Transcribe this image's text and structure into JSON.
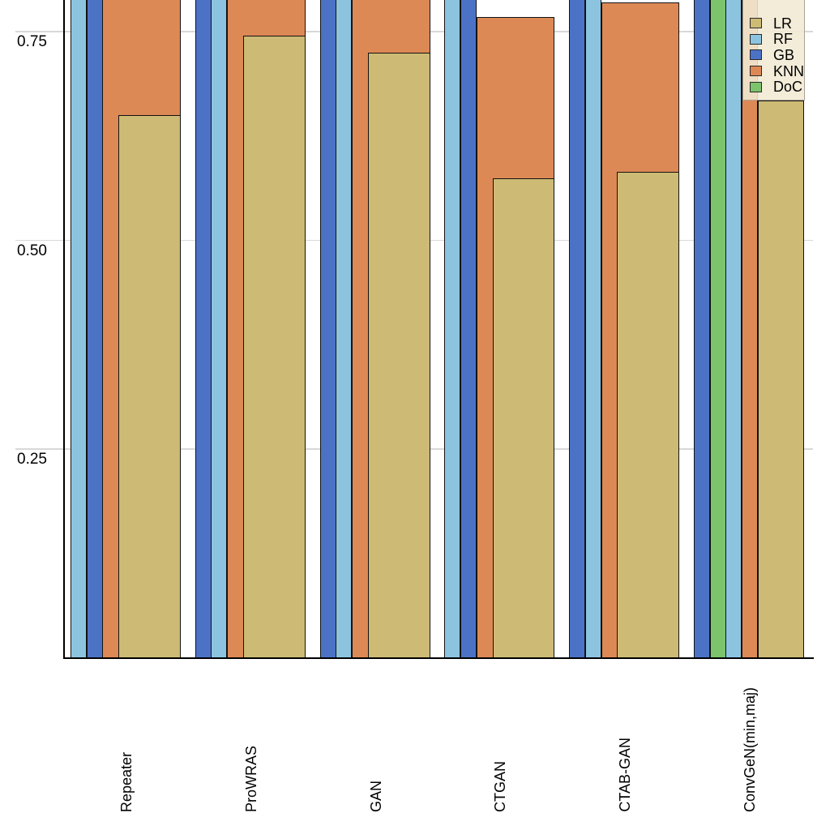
{
  "figure": {
    "background": "#ffffff",
    "note": "figure cropped at top; bars and legend extend beyond the upper edge"
  },
  "series_colors": {
    "LR": "#CDBA74",
    "RF": "#8CC4E0",
    "GB": "#4C72C6",
    "KNN": "#DD8955",
    "DoC": "#7CC36B"
  },
  "legend": {
    "position": "top-right, semi-transparent, cut off at top",
    "background": "#F0E9D4",
    "items": [
      {
        "label": "LR"
      },
      {
        "label": "RF"
      },
      {
        "label": "GB"
      },
      {
        "label": "KNN"
      },
      {
        "label": "DoC"
      }
    ]
  },
  "y_axis": {
    "ticks": [
      {
        "label": "0.75",
        "value": 0.75
      },
      {
        "label": "0.50",
        "value": 0.5
      },
      {
        "label": "0.25",
        "value": 0.25
      }
    ],
    "min": 0,
    "visible_max": 0.79
  },
  "chart_data": {
    "type": "bar",
    "style": "overlapping bars per group, drawn back-to-front (tallest/widest behind), right-aligned within group slot; bars marked clipped rise above the cropped top edge (> ~0.79)",
    "title": "",
    "xlabel": "",
    "ylabel": "",
    "categories": [
      "Repeater",
      "ProWRAS",
      "GAN",
      "CTGAN",
      "CTAB-GAN",
      "ConvGeN(min,maj)"
    ],
    "legend_entries": [
      "LR",
      "RF",
      "GB",
      "KNN",
      "DoC"
    ],
    "yticks": [
      0.25,
      0.5,
      0.75
    ],
    "ylim_visible": [
      0,
      0.79
    ],
    "grid": "horizontal major gridlines, extending left of the y-axis to the tick labels",
    "legend_position": "top right",
    "groups": [
      {
        "category": "Repeater",
        "bars": [
          {
            "series": "RF",
            "value": null,
            "clipped": true
          },
          {
            "series": "GB",
            "value": null,
            "clipped": true
          },
          {
            "series": "KNN",
            "value": null,
            "clipped": true
          },
          {
            "series": "LR",
            "value": 0.65,
            "clipped": false
          }
        ]
      },
      {
        "category": "ProWRAS",
        "bars": [
          {
            "series": "GB",
            "value": null,
            "clipped": true
          },
          {
            "series": "RF",
            "value": null,
            "clipped": true
          },
          {
            "series": "KNN",
            "value": null,
            "clipped": true
          },
          {
            "series": "LR",
            "value": 0.745,
            "clipped": false
          }
        ]
      },
      {
        "category": "GAN",
        "bars": [
          {
            "series": "GB",
            "value": null,
            "clipped": true
          },
          {
            "series": "RF",
            "value": null,
            "clipped": true
          },
          {
            "series": "KNN",
            "value": null,
            "clipped": true
          },
          {
            "series": "LR",
            "value": 0.725,
            "clipped": false
          }
        ]
      },
      {
        "category": "CTGAN",
        "bars": [
          {
            "series": "RF",
            "value": null,
            "clipped": true
          },
          {
            "series": "GB",
            "value": null,
            "clipped": true
          },
          {
            "series": "KNN",
            "value": 0.767,
            "clipped": false
          },
          {
            "series": "LR",
            "value": 0.574,
            "clipped": false
          }
        ]
      },
      {
        "category": "CTAB-GAN",
        "bars": [
          {
            "series": "GB",
            "value": null,
            "clipped": true
          },
          {
            "series": "RF",
            "value": null,
            "clipped": true
          },
          {
            "series": "KNN",
            "value": 0.785,
            "clipped": false
          },
          {
            "series": "LR",
            "value": 0.582,
            "clipped": false
          }
        ]
      },
      {
        "category": "ConvGeN(min,maj)",
        "bars": [
          {
            "series": "GB",
            "value": null,
            "clipped": true
          },
          {
            "series": "DoC",
            "value": null,
            "clipped": true
          },
          {
            "series": "RF",
            "value": null,
            "clipped": true
          },
          {
            "series": "KNN",
            "value": null,
            "clipped": true
          },
          {
            "series": "LR",
            "value": 0.667,
            "clipped": false
          }
        ]
      }
    ]
  }
}
